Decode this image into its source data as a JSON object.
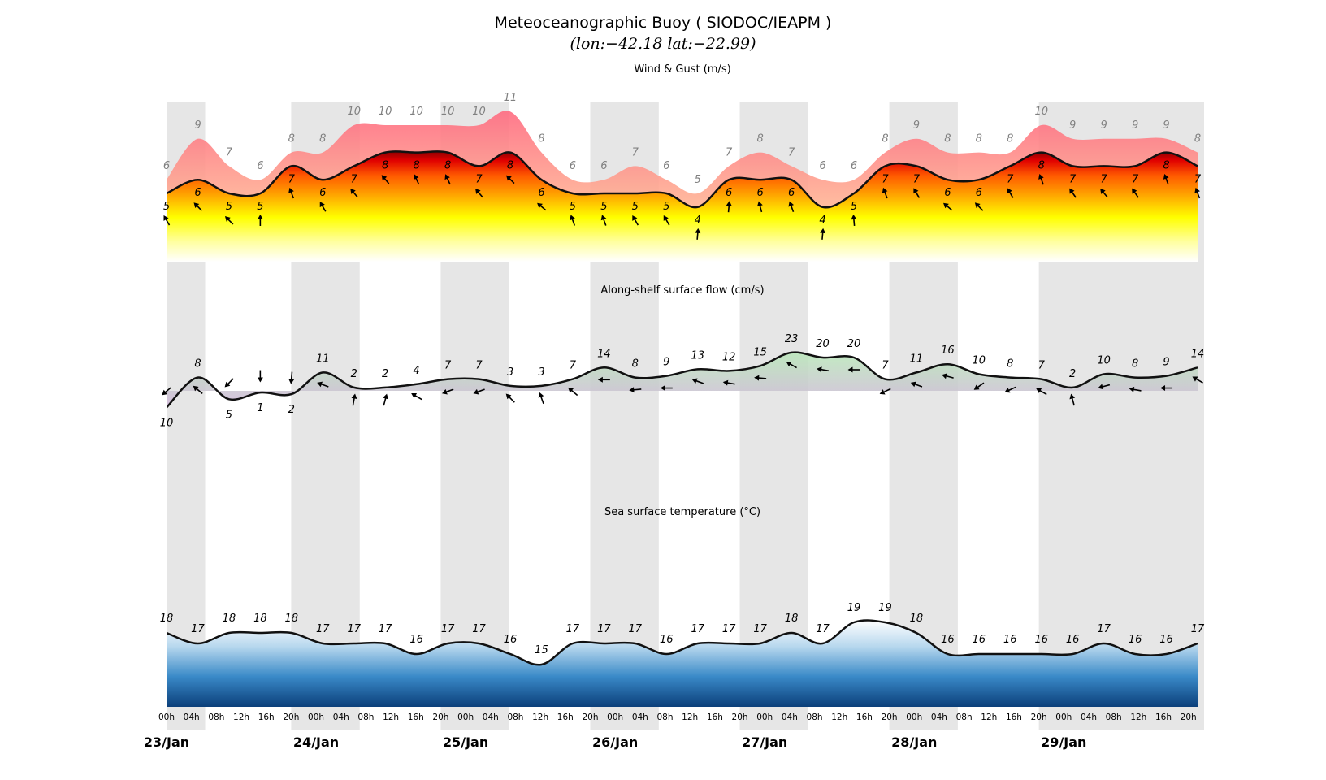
{
  "title": "Meteoceanographic Buoy ( SIODOC/IEAPM )",
  "subtitle": "(lon:−42.18  lat:−22.99)",
  "chart_data": {
    "type": "line",
    "x": [
      "00h",
      "04h",
      "08h",
      "12h",
      "16h",
      "20h",
      "00h",
      "04h",
      "08h",
      "12h",
      "16h",
      "20h",
      "00h",
      "04h",
      "08h",
      "12h",
      "16h",
      "20h",
      "00h",
      "04h",
      "08h",
      "12h",
      "16h",
      "20h",
      "00h",
      "04h",
      "08h",
      "12h",
      "16h",
      "20h",
      "00h",
      "04h",
      "08h",
      "12h",
      "16h",
      "20h",
      "00h",
      "04h",
      "08h",
      "12h",
      "16h",
      "20h"
    ],
    "day_labels": [
      "23/Jan",
      "24/Jan",
      "25/Jan",
      "26/Jan",
      "27/Jan",
      "28/Jan",
      "29/Jan"
    ],
    "shaded_nights": true,
    "panels": [
      {
        "key": "wind",
        "title": "Wind & Gust (m/s)",
        "series": [
          {
            "name": "wind",
            "values": [
              5,
              6,
              5,
              5,
              7,
              6,
              7,
              8,
              8,
              8,
              7,
              8,
              6,
              5,
              5,
              5,
              5,
              4,
              6,
              6,
              6,
              4,
              5,
              7,
              7,
              6,
              6,
              7,
              8,
              7,
              7,
              7,
              8,
              7
            ]
          },
          {
            "name": "gust",
            "values": [
              6,
              9,
              7,
              6,
              8,
              8,
              10,
              10,
              10,
              10,
              10,
              11,
              8,
              6,
              6,
              7,
              6,
              5,
              7,
              8,
              7,
              6,
              6,
              8,
              9,
              8,
              8,
              8,
              10,
              9,
              9,
              9,
              9,
              8
            ]
          }
        ],
        "direction_deg": [
          60,
          45,
          45,
          90,
          70,
          60,
          50,
          50,
          65,
          65,
          50,
          45,
          40,
          70,
          70,
          60,
          60,
          95,
          95,
          75,
          70,
          95,
          85,
          70,
          60,
          40,
          45,
          60,
          70,
          55,
          50,
          55,
          70,
          70
        ]
      },
      {
        "key": "current",
        "title": "Along-shelf surface flow (cm/s)",
        "series": [
          {
            "name": "along-shelf flow",
            "values": [
              -10,
              8,
              -5,
              -1,
              -2,
              11,
              2,
              2,
              4,
              7,
              7,
              3,
              3,
              7,
              14,
              8,
              9,
              13,
              12,
              15,
              23,
              20,
              20,
              7,
              11,
              16,
              10,
              8,
              7,
              2,
              10,
              8,
              9,
              14
            ]
          }
        ],
        "direction_deg": [
          230,
          310,
          225,
          180,
          185,
          290,
          10,
          15,
          300,
          250,
          250,
          315,
          340,
          310,
          270,
          265,
          270,
          290,
          280,
          275,
          300,
          280,
          270,
          245,
          290,
          285,
          235,
          245,
          300,
          345,
          255,
          280,
          270,
          300
        ]
      },
      {
        "key": "sst",
        "title": "Sea surface temperature (°C)",
        "series": [
          {
            "name": "sst",
            "values": [
              18,
              17,
              18,
              18,
              18,
              17,
              17,
              17,
              16,
              17,
              17,
              16,
              15,
              17,
              17,
              17,
              16,
              17,
              17,
              17,
              18,
              17,
              19,
              19,
              18,
              16,
              16,
              16,
              16,
              16,
              17,
              16,
              16,
              17
            ]
          }
        ]
      }
    ],
    "labels": {
      "wind": [
        "5",
        "6",
        "5",
        "5",
        "7",
        "6",
        "7",
        "8",
        "8",
        "8",
        "7",
        "8",
        "6",
        "5",
        "5",
        "5",
        "5",
        "4",
        "6",
        "6",
        "6",
        "4",
        "5",
        "7",
        "7",
        "6",
        "6",
        "7",
        "8",
        "7",
        "7",
        "7",
        "8",
        "7"
      ],
      "gust": [
        "6",
        "9",
        "7",
        "6",
        "8",
        "8",
        "10",
        "10",
        "10",
        "10",
        "10",
        "11",
        "8",
        "6",
        "6",
        "7",
        "6",
        "5",
        "7",
        "8",
        "7",
        "6",
        "6",
        "8",
        "9",
        "8",
        "8",
        "8",
        "10",
        "9",
        "9",
        "9",
        "9",
        "8"
      ],
      "current": [
        "10",
        "8",
        "5",
        "1",
        "2",
        "11",
        "2",
        "2",
        "4",
        "7",
        "7",
        "3",
        "3",
        "7",
        "14",
        "8",
        "9",
        "13",
        "12",
        "15",
        "23",
        "20",
        "20",
        "7",
        "11",
        "16",
        "10",
        "8",
        "7",
        "2",
        "10",
        "8",
        "9",
        "14"
      ],
      "sst": [
        "18",
        "17",
        "18",
        "18",
        "18",
        "17",
        "17",
        "17",
        "16",
        "17",
        "17",
        "16",
        "15",
        "17",
        "17",
        "17",
        "16",
        "17",
        "17",
        "17",
        "18",
        "17",
        "19",
        "19",
        "18",
        "16",
        "16",
        "16",
        "16",
        "16",
        "17",
        "16",
        "16",
        "17"
      ]
    }
  }
}
